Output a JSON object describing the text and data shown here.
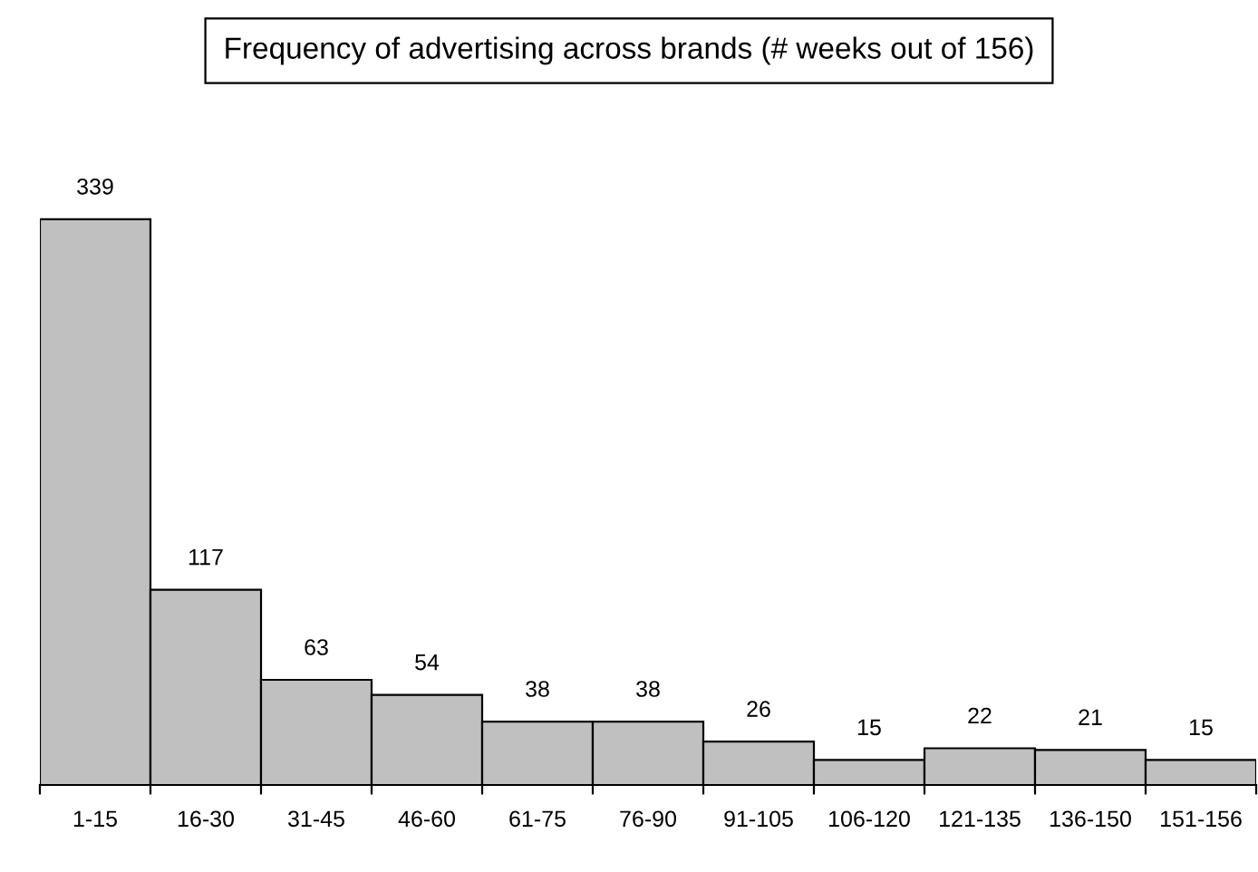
{
  "chart_data": {
    "type": "bar",
    "title": "Frequency of advertising across brands (# weeks out of 156)",
    "categories": [
      "1-15",
      "16-30",
      "31-45",
      "46-60",
      "61-75",
      "76-90",
      "91-105",
      "106-120",
      "121-135",
      "136-150",
      "151-156"
    ],
    "values": [
      339,
      117,
      63,
      54,
      38,
      38,
      26,
      15,
      22,
      21,
      15
    ],
    "color": "#c0c0c0",
    "data_labels": true,
    "grid": false,
    "legend": false
  }
}
